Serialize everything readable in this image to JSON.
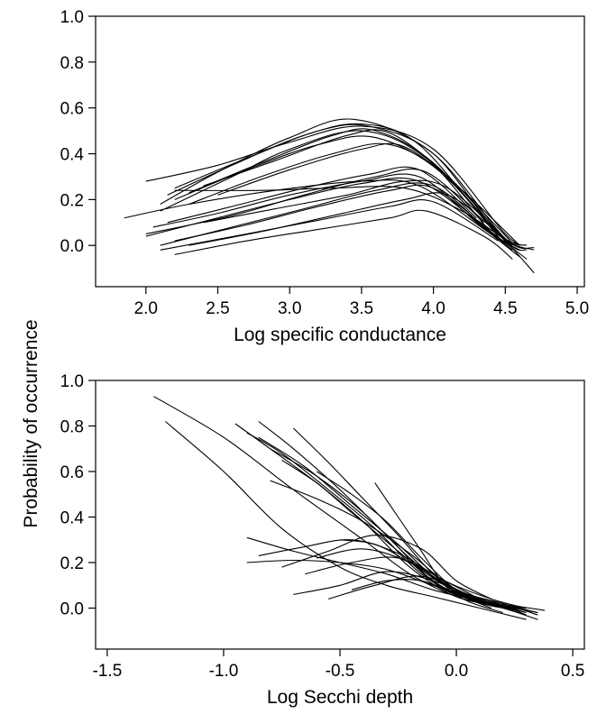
{
  "ylabel": "Probability of occurrence",
  "chart_data": [
    {
      "type": "line",
      "xlabel": "Log specific conductance",
      "ylabel": "Probability of occurrence",
      "xlim": [
        1.65,
        5.05
      ],
      "ylim": [
        -0.18,
        1.0
      ],
      "xticks": [
        "2.0",
        "2.5",
        "3.0",
        "3.5",
        "4.0",
        "4.5",
        "5.0"
      ],
      "yticks": [
        "0.0",
        "0.2",
        "0.4",
        "0.6",
        "0.8",
        "1.0"
      ],
      "series": [
        {
          "x": [
            2.0,
            2.5,
            3.0,
            3.5,
            4.0,
            4.5,
            4.65
          ],
          "y": [
            0.28,
            0.35,
            0.45,
            0.52,
            0.42,
            0.05,
            0.0
          ]
        },
        {
          "x": [
            2.1,
            2.5,
            3.0,
            3.45,
            4.0,
            4.5,
            4.7
          ],
          "y": [
            0.18,
            0.32,
            0.47,
            0.55,
            0.4,
            0.03,
            -0.01
          ]
        },
        {
          "x": [
            2.15,
            2.6,
            3.1,
            3.5,
            3.9,
            4.4,
            4.6
          ],
          "y": [
            0.22,
            0.35,
            0.48,
            0.53,
            0.44,
            0.08,
            0.0
          ]
        },
        {
          "x": [
            2.2,
            2.7,
            3.2,
            3.55,
            4.0,
            4.45,
            4.7
          ],
          "y": [
            0.25,
            0.38,
            0.5,
            0.52,
            0.4,
            0.05,
            -0.02
          ]
        },
        {
          "x": [
            2.1,
            2.6,
            3.0,
            3.5,
            3.95,
            4.4,
            4.6
          ],
          "y": [
            0.15,
            0.3,
            0.42,
            0.5,
            0.38,
            0.06,
            0.0
          ]
        },
        {
          "x": [
            2.3,
            2.8,
            3.3,
            3.6,
            4.0,
            4.5,
            4.65
          ],
          "y": [
            0.23,
            0.36,
            0.48,
            0.5,
            0.36,
            0.02,
            -0.02
          ]
        },
        {
          "x": [
            2.2,
            2.7,
            3.2,
            3.6,
            4.05,
            4.5
          ],
          "y": [
            0.2,
            0.33,
            0.44,
            0.47,
            0.32,
            0.0
          ]
        },
        {
          "x": [
            2.4,
            2.9,
            3.4,
            3.7,
            4.1,
            4.55
          ],
          "y": [
            0.26,
            0.37,
            0.48,
            0.49,
            0.3,
            0.01
          ]
        },
        {
          "x": [
            2.3,
            2.8,
            3.3,
            3.7,
            4.1,
            4.5
          ],
          "y": [
            0.18,
            0.3,
            0.4,
            0.44,
            0.3,
            0.02
          ]
        },
        {
          "x": [
            2.5,
            3.0,
            3.5,
            3.8,
            4.2,
            4.6
          ],
          "y": [
            0.22,
            0.33,
            0.42,
            0.43,
            0.24,
            0.0
          ]
        },
        {
          "x": [
            2.2,
            2.8,
            3.3,
            3.8,
            4.2,
            4.55
          ],
          "y": [
            0.24,
            0.24,
            0.25,
            0.25,
            0.15,
            0.0
          ]
        },
        {
          "x": [
            1.85,
            2.3,
            2.9,
            3.5,
            3.9,
            4.4,
            4.6
          ],
          "y": [
            0.12,
            0.18,
            0.24,
            0.28,
            0.26,
            0.05,
            -0.02
          ]
        },
        {
          "x": [
            2.0,
            2.5,
            3.0,
            3.5,
            3.9,
            4.35,
            4.55
          ],
          "y": [
            0.04,
            0.12,
            0.2,
            0.27,
            0.28,
            0.08,
            -0.02
          ]
        },
        {
          "x": [
            2.1,
            2.6,
            3.1,
            3.6,
            4.0,
            4.4,
            4.6
          ],
          "y": [
            0.0,
            0.08,
            0.16,
            0.24,
            0.26,
            0.05,
            -0.05
          ]
        },
        {
          "x": [
            2.05,
            2.5,
            3.0,
            3.5,
            3.9,
            4.3,
            4.55
          ],
          "y": [
            0.08,
            0.14,
            0.22,
            0.28,
            0.3,
            0.1,
            -0.02
          ]
        },
        {
          "x": [
            2.2,
            2.7,
            3.2,
            3.7,
            4.0,
            4.4,
            4.65
          ],
          "y": [
            0.02,
            0.09,
            0.17,
            0.24,
            0.25,
            0.06,
            -0.06
          ]
        },
        {
          "x": [
            2.3,
            2.8,
            3.3,
            3.8,
            4.1,
            4.45,
            4.7
          ],
          "y": [
            0.0,
            0.06,
            0.13,
            0.2,
            0.22,
            0.05,
            -0.12
          ]
        },
        {
          "x": [
            2.1,
            2.7,
            3.2,
            3.7,
            4.0,
            4.45
          ],
          "y": [
            -0.02,
            0.05,
            0.11,
            0.17,
            0.19,
            0.02
          ]
        },
        {
          "x": [
            2.2,
            2.7,
            3.2,
            3.7,
            3.95,
            4.35,
            4.55
          ],
          "y": [
            -0.04,
            0.02,
            0.07,
            0.12,
            0.15,
            0.04,
            -0.06
          ]
        },
        {
          "x": [
            2.0,
            2.6,
            3.1,
            3.6,
            3.95,
            4.35
          ],
          "y": [
            0.05,
            0.13,
            0.22,
            0.3,
            0.32,
            0.1
          ]
        },
        {
          "x": [
            2.4,
            2.9,
            3.4,
            3.8,
            4.1,
            4.5
          ],
          "y": [
            0.1,
            0.16,
            0.22,
            0.28,
            0.25,
            0.03
          ]
        },
        {
          "x": [
            2.15,
            2.6,
            3.1,
            3.55,
            3.9,
            4.3
          ],
          "y": [
            0.1,
            0.17,
            0.25,
            0.31,
            0.33,
            0.12
          ]
        }
      ]
    },
    {
      "type": "line",
      "xlabel": "Log Secchi depth",
      "ylabel": "Probability of occurrence",
      "xlim": [
        -1.55,
        0.55
      ],
      "ylim": [
        -0.18,
        1.0
      ],
      "xticks": [
        "-1.5",
        "-1.0",
        "-0.5",
        "0.0",
        "0.5"
      ],
      "yticks": [
        "0.0",
        "0.2",
        "0.4",
        "0.6",
        "0.8",
        "1.0"
      ],
      "series": [
        {
          "x": [
            -1.3,
            -1.0,
            -0.7,
            -0.4,
            -0.2,
            0.0,
            0.2,
            0.35
          ],
          "y": [
            0.93,
            0.75,
            0.52,
            0.3,
            0.15,
            0.05,
            0.0,
            -0.05
          ]
        },
        {
          "x": [
            -1.25,
            -1.0,
            -0.75,
            -0.5,
            -0.3,
            -0.1,
            0.1,
            0.3
          ],
          "y": [
            0.82,
            0.6,
            0.35,
            0.18,
            0.1,
            0.05,
            0.0,
            -0.05
          ]
        },
        {
          "x": [
            -0.95,
            -0.8,
            -0.6,
            -0.4,
            -0.2,
            0.0,
            0.2,
            0.35
          ],
          "y": [
            0.81,
            0.7,
            0.55,
            0.38,
            0.18,
            0.05,
            0.01,
            -0.02
          ]
        },
        {
          "x": [
            -0.9,
            -0.75,
            -0.55,
            -0.35,
            -0.15,
            0.05,
            0.25,
            0.38
          ],
          "y": [
            0.77,
            0.68,
            0.52,
            0.35,
            0.15,
            0.04,
            0.01,
            -0.01
          ]
        },
        {
          "x": [
            -0.85,
            -0.7,
            -0.5,
            -0.3,
            -0.1,
            0.1,
            0.3
          ],
          "y": [
            0.82,
            0.7,
            0.52,
            0.32,
            0.12,
            0.03,
            0.0
          ]
        },
        {
          "x": [
            -0.85,
            -0.65,
            -0.45,
            -0.25,
            -0.05,
            0.15,
            0.3
          ],
          "y": [
            0.75,
            0.62,
            0.45,
            0.28,
            0.1,
            0.03,
            -0.02
          ]
        },
        {
          "x": [
            -0.8,
            -0.6,
            -0.4,
            -0.2,
            0.0,
            0.2,
            0.3
          ],
          "y": [
            0.7,
            0.58,
            0.42,
            0.22,
            0.07,
            0.01,
            -0.03
          ]
        },
        {
          "x": [
            -0.7,
            -0.55,
            -0.4,
            -0.25,
            -0.1,
            0.05,
            0.2
          ],
          "y": [
            0.79,
            0.64,
            0.48,
            0.32,
            0.15,
            0.04,
            0.0
          ]
        },
        {
          "x": [
            -0.75,
            -0.6,
            -0.45,
            -0.25,
            -0.05,
            0.15,
            0.3
          ],
          "y": [
            0.65,
            0.55,
            0.42,
            0.25,
            0.08,
            0.02,
            -0.02
          ]
        },
        {
          "x": [
            -0.8,
            -0.6,
            -0.4,
            -0.2,
            0.0,
            0.2,
            0.35
          ],
          "y": [
            0.56,
            0.48,
            0.38,
            0.24,
            0.08,
            0.02,
            -0.03
          ]
        },
        {
          "x": [
            -0.35,
            -0.25,
            -0.15,
            -0.05,
            0.05,
            0.2
          ],
          "y": [
            0.55,
            0.4,
            0.25,
            0.1,
            0.03,
            -0.02
          ]
        },
        {
          "x": [
            -0.9,
            -0.7,
            -0.5,
            -0.3,
            -0.1,
            0.1,
            0.3
          ],
          "y": [
            0.31,
            0.25,
            0.2,
            0.15,
            0.08,
            0.03,
            -0.03
          ]
        },
        {
          "x": [
            -0.9,
            -0.7,
            -0.5,
            -0.3,
            -0.1,
            0.1
          ],
          "y": [
            0.2,
            0.21,
            0.2,
            0.17,
            0.1,
            0.04
          ]
        },
        {
          "x": [
            -0.85,
            -0.65,
            -0.45,
            -0.25,
            -0.05,
            0.15,
            0.3
          ],
          "y": [
            0.23,
            0.27,
            0.3,
            0.24,
            0.12,
            0.04,
            0.0
          ]
        },
        {
          "x": [
            -0.75,
            -0.55,
            -0.35,
            -0.15,
            0.0,
            0.15
          ],
          "y": [
            0.18,
            0.25,
            0.32,
            0.26,
            0.12,
            0.04
          ]
        },
        {
          "x": [
            -0.7,
            -0.5,
            -0.3,
            -0.1,
            0.1,
            0.25
          ],
          "y": [
            0.06,
            0.1,
            0.16,
            0.12,
            0.04,
            0.0
          ]
        },
        {
          "x": [
            -0.6,
            -0.4,
            -0.2,
            0.0,
            0.2,
            0.35
          ],
          "y": [
            0.22,
            0.26,
            0.2,
            0.08,
            0.02,
            -0.02
          ]
        },
        {
          "x": [
            -0.55,
            -0.35,
            -0.15,
            0.05,
            0.2
          ],
          "y": [
            0.04,
            0.1,
            0.14,
            0.06,
            0.0
          ]
        },
        {
          "x": [
            -0.65,
            -0.45,
            -0.25,
            -0.05,
            0.1
          ],
          "y": [
            0.15,
            0.2,
            0.22,
            0.12,
            0.04
          ]
        },
        {
          "x": [
            -0.5,
            -0.35,
            -0.2,
            -0.05,
            0.1,
            0.25
          ],
          "y": [
            0.3,
            0.28,
            0.2,
            0.1,
            0.03,
            -0.01
          ]
        },
        {
          "x": [
            -0.45,
            -0.3,
            -0.15,
            0.0,
            0.15
          ],
          "y": [
            0.08,
            0.12,
            0.12,
            0.06,
            0.0
          ]
        },
        {
          "x": [
            -0.6,
            -0.45,
            -0.3,
            -0.15,
            0.0,
            0.15
          ],
          "y": [
            0.6,
            0.5,
            0.38,
            0.22,
            0.08,
            0.02
          ]
        }
      ]
    }
  ]
}
